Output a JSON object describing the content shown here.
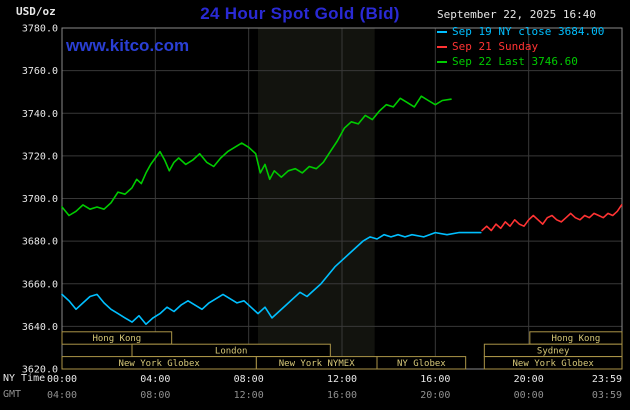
{
  "header": {
    "units": "USD/oz",
    "title": "24 Hour Spot Gold (Bid)",
    "datetime": "September 22, 2025 16:40",
    "watermark": "www.kitco.com"
  },
  "legend": [
    {
      "label": "Sep 19 NY close 3684.00",
      "color": "#00bfff"
    },
    {
      "label": "Sep 21 Sunday",
      "color": "#ff3333"
    },
    {
      "label": "Sep 22 Last 3746.60",
      "color": "#00cc00"
    }
  ],
  "axes": {
    "ny_label": "NY Time",
    "gmt_label": "GMT",
    "y_ticks": [
      "3780.0",
      "3760.0",
      "3740.0",
      "3720.0",
      "3700.0",
      "3680.0",
      "3660.0",
      "3640.0",
      "3620.0"
    ],
    "x_ticks": [
      {
        "h": 0,
        "ny": "00:00",
        "gmt": "04:00"
      },
      {
        "h": 4,
        "ny": "04:00",
        "gmt": "08:00"
      },
      {
        "h": 8,
        "ny": "08:00",
        "gmt": "12:00"
      },
      {
        "h": 12,
        "ny": "12:00",
        "gmt": "16:00"
      },
      {
        "h": 16,
        "ny": "16:00",
        "gmt": "20:00"
      },
      {
        "h": 20,
        "ny": "20:00",
        "gmt": "00:00"
      },
      {
        "h": 23.983,
        "ny": "23:59",
        "gmt": "03:59"
      }
    ]
  },
  "colors": {
    "grid": "#383838",
    "frame": "#8a8a8a",
    "tick_text": "#e8e8e8",
    "gmt_text": "#909090",
    "session_border": "#ab9548",
    "session_text": "#d6c878",
    "band_fill": "rgba(200,210,160,0.09)",
    "accent_blue": "#2a2ad4"
  },
  "chart_data": {
    "type": "line",
    "title": "24 Hour Spot Gold (Bid)",
    "xlabel": "NY Time",
    "ylabel": "USD/oz",
    "xlim": [
      0,
      24
    ],
    "ylim": [
      3620,
      3780
    ],
    "grid": true,
    "y_gridlines": [
      3640,
      3660,
      3680,
      3700,
      3720,
      3740,
      3760
    ],
    "x_gridlines_hours": [
      4,
      8,
      12,
      16,
      20
    ],
    "nymex_band_hours": [
      8.4,
      13.4
    ],
    "series": [
      {
        "name": "Sep 22 Last 3746.60",
        "color": "#00cc00",
        "points": [
          [
            0,
            3696
          ],
          [
            0.3,
            3692
          ],
          [
            0.6,
            3694
          ],
          [
            0.9,
            3697
          ],
          [
            1.2,
            3695
          ],
          [
            1.5,
            3696
          ],
          [
            1.8,
            3695
          ],
          [
            2.1,
            3698
          ],
          [
            2.4,
            3703
          ],
          [
            2.7,
            3702
          ],
          [
            3.0,
            3705
          ],
          [
            3.2,
            3709
          ],
          [
            3.4,
            3707
          ],
          [
            3.6,
            3712
          ],
          [
            3.8,
            3716
          ],
          [
            4.0,
            3719
          ],
          [
            4.2,
            3722
          ],
          [
            4.4,
            3718
          ],
          [
            4.6,
            3713
          ],
          [
            4.8,
            3717
          ],
          [
            5.0,
            3719
          ],
          [
            5.3,
            3716
          ],
          [
            5.6,
            3718
          ],
          [
            5.9,
            3721
          ],
          [
            6.2,
            3717
          ],
          [
            6.5,
            3715
          ],
          [
            6.8,
            3719
          ],
          [
            7.1,
            3722
          ],
          [
            7.4,
            3724
          ],
          [
            7.7,
            3726
          ],
          [
            8.0,
            3724
          ],
          [
            8.3,
            3721
          ],
          [
            8.5,
            3712
          ],
          [
            8.7,
            3716
          ],
          [
            8.9,
            3709
          ],
          [
            9.1,
            3713
          ],
          [
            9.4,
            3710
          ],
          [
            9.7,
            3713
          ],
          [
            10.0,
            3714
          ],
          [
            10.3,
            3712
          ],
          [
            10.6,
            3715
          ],
          [
            10.9,
            3714
          ],
          [
            11.2,
            3717
          ],
          [
            11.5,
            3722
          ],
          [
            11.8,
            3727
          ],
          [
            12.1,
            3733
          ],
          [
            12.4,
            3736
          ],
          [
            12.7,
            3735
          ],
          [
            13.0,
            3739
          ],
          [
            13.3,
            3737
          ],
          [
            13.6,
            3741
          ],
          [
            13.9,
            3744
          ],
          [
            14.2,
            3743
          ],
          [
            14.5,
            3747
          ],
          [
            14.8,
            3745
          ],
          [
            15.1,
            3743
          ],
          [
            15.4,
            3748
          ],
          [
            15.7,
            3746
          ],
          [
            16.0,
            3744
          ],
          [
            16.3,
            3746
          ],
          [
            16.67,
            3746.6
          ]
        ]
      },
      {
        "name": "Sep 19 NY close 3684.00",
        "color": "#00bfff",
        "points": [
          [
            0,
            3655
          ],
          [
            0.3,
            3652
          ],
          [
            0.6,
            3648
          ],
          [
            0.9,
            3651
          ],
          [
            1.2,
            3654
          ],
          [
            1.5,
            3655
          ],
          [
            1.8,
            3651
          ],
          [
            2.1,
            3648
          ],
          [
            2.4,
            3646
          ],
          [
            2.7,
            3644
          ],
          [
            3.0,
            3642
          ],
          [
            3.3,
            3645
          ],
          [
            3.6,
            3641
          ],
          [
            3.9,
            3644
          ],
          [
            4.2,
            3646
          ],
          [
            4.5,
            3649
          ],
          [
            4.8,
            3647
          ],
          [
            5.1,
            3650
          ],
          [
            5.4,
            3652
          ],
          [
            5.7,
            3650
          ],
          [
            6.0,
            3648
          ],
          [
            6.3,
            3651
          ],
          [
            6.6,
            3653
          ],
          [
            6.9,
            3655
          ],
          [
            7.2,
            3653
          ],
          [
            7.5,
            3651
          ],
          [
            7.8,
            3652
          ],
          [
            8.1,
            3649
          ],
          [
            8.4,
            3646
          ],
          [
            8.7,
            3649
          ],
          [
            9.0,
            3644
          ],
          [
            9.3,
            3647
          ],
          [
            9.6,
            3650
          ],
          [
            9.9,
            3653
          ],
          [
            10.2,
            3656
          ],
          [
            10.5,
            3654
          ],
          [
            10.8,
            3657
          ],
          [
            11.1,
            3660
          ],
          [
            11.4,
            3664
          ],
          [
            11.7,
            3668
          ],
          [
            12.0,
            3671
          ],
          [
            12.3,
            3674
          ],
          [
            12.6,
            3677
          ],
          [
            12.9,
            3680
          ],
          [
            13.2,
            3682
          ],
          [
            13.5,
            3681
          ],
          [
            13.8,
            3683
          ],
          [
            14.1,
            3682
          ],
          [
            14.4,
            3683
          ],
          [
            14.7,
            3682
          ],
          [
            15.0,
            3683
          ],
          [
            15.5,
            3682
          ],
          [
            16.0,
            3684
          ],
          [
            16.5,
            3683
          ],
          [
            17.0,
            3684
          ],
          [
            17.5,
            3684
          ],
          [
            17.95,
            3684
          ]
        ]
      },
      {
        "name": "Sep 21 Sunday",
        "color": "#ff3333",
        "points": [
          [
            18.0,
            3685
          ],
          [
            18.2,
            3687
          ],
          [
            18.4,
            3685
          ],
          [
            18.6,
            3688
          ],
          [
            18.8,
            3686
          ],
          [
            19.0,
            3689
          ],
          [
            19.2,
            3687
          ],
          [
            19.4,
            3690
          ],
          [
            19.6,
            3688
          ],
          [
            19.8,
            3687
          ],
          [
            20.0,
            3690
          ],
          [
            20.2,
            3692
          ],
          [
            20.4,
            3690
          ],
          [
            20.6,
            3688
          ],
          [
            20.8,
            3691
          ],
          [
            21.0,
            3692
          ],
          [
            21.2,
            3690
          ],
          [
            21.4,
            3689
          ],
          [
            21.6,
            3691
          ],
          [
            21.8,
            3693
          ],
          [
            22.0,
            3691
          ],
          [
            22.2,
            3690
          ],
          [
            22.4,
            3692
          ],
          [
            22.6,
            3691
          ],
          [
            22.8,
            3693
          ],
          [
            23.0,
            3692
          ],
          [
            23.2,
            3691
          ],
          [
            23.4,
            3693
          ],
          [
            23.6,
            3692
          ],
          [
            23.8,
            3694
          ],
          [
            23.983,
            3697
          ]
        ]
      }
    ],
    "sessions": [
      {
        "row": 0,
        "start": 0,
        "end": 4.7,
        "label": "Hong Kong"
      },
      {
        "row": 0,
        "start": 20.05,
        "end": 24,
        "label": "Hong Kong"
      },
      {
        "row": 1,
        "start": 3.0,
        "end": 11.5,
        "label": "London"
      },
      {
        "row": 1,
        "start": 18.1,
        "end": 24,
        "label": "Sydney"
      },
      {
        "row": 2,
        "start": 0,
        "end": 8.33,
        "label": "New York Globex"
      },
      {
        "row": 2,
        "start": 8.33,
        "end": 13.5,
        "label": "New York NYMEX"
      },
      {
        "row": 2,
        "start": 13.5,
        "end": 17.3,
        "label": "NY Globex"
      },
      {
        "row": 2,
        "start": 18.1,
        "end": 24,
        "label": "New York Globex"
      }
    ]
  }
}
